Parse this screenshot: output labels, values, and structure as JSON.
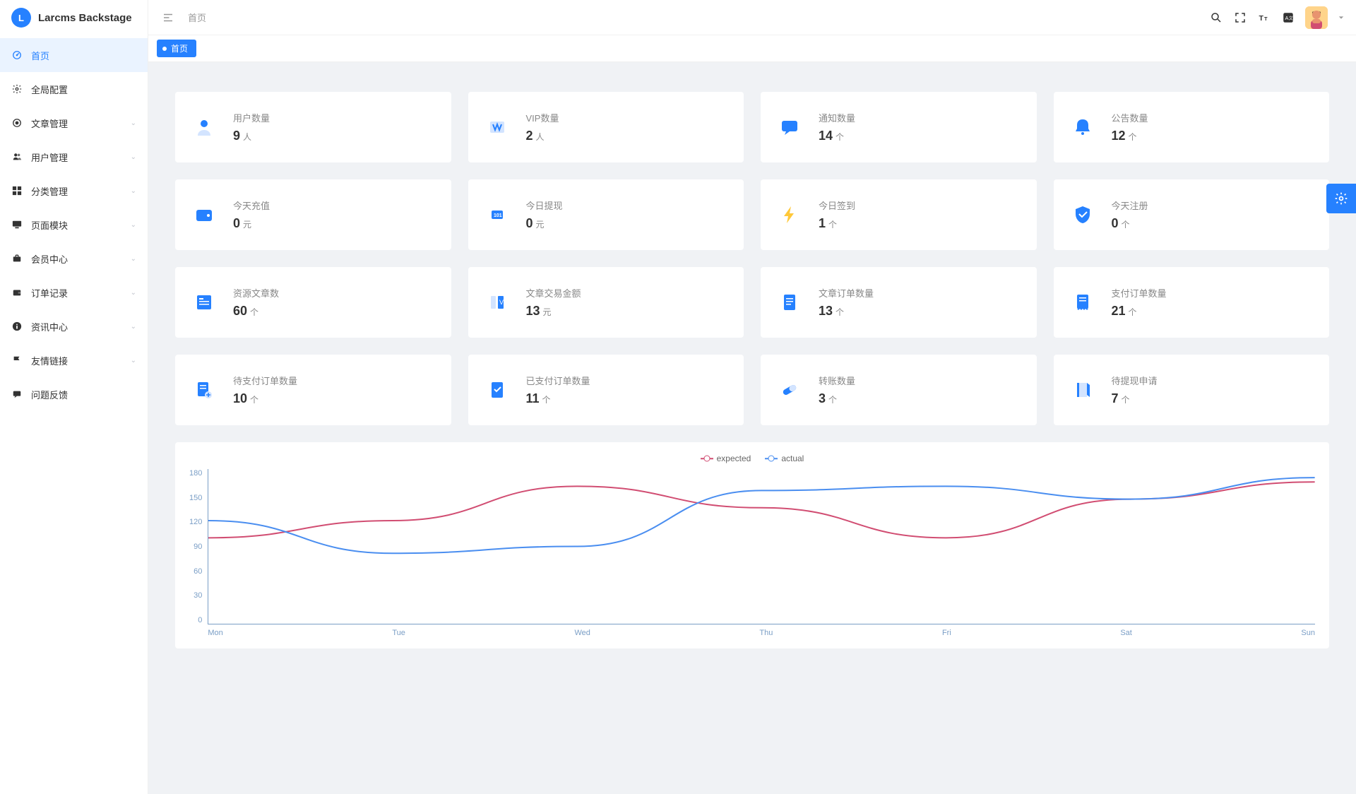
{
  "brand": {
    "name": "Larcms Backstage",
    "logo_letter": "L"
  },
  "colors": {
    "primary": "#2681ff",
    "bg": "#f0f2f5",
    "icon_light": "#d3e4ff",
    "expected": "#d14d72",
    "actual": "#4a8ef0",
    "axis": "#7a9ec6"
  },
  "sidebar": {
    "items": [
      {
        "label": "首页",
        "icon": "dashboard",
        "active": true,
        "expandable": false
      },
      {
        "label": "全局配置",
        "icon": "gear",
        "active": false,
        "expandable": false
      },
      {
        "label": "文章管理",
        "icon": "target",
        "active": false,
        "expandable": true
      },
      {
        "label": "用户管理",
        "icon": "users",
        "active": false,
        "expandable": true
      },
      {
        "label": "分类管理",
        "icon": "grid",
        "active": false,
        "expandable": true
      },
      {
        "label": "页面模块",
        "icon": "monitor",
        "active": false,
        "expandable": true
      },
      {
        "label": "会员中心",
        "icon": "briefcase",
        "active": false,
        "expandable": true
      },
      {
        "label": "订单记录",
        "icon": "wallet",
        "active": false,
        "expandable": true
      },
      {
        "label": "资讯中心",
        "icon": "info",
        "active": false,
        "expandable": true
      },
      {
        "label": "友情链接",
        "icon": "flag",
        "active": false,
        "expandable": true
      },
      {
        "label": "问题反馈",
        "icon": "message",
        "active": false,
        "expandable": false
      }
    ]
  },
  "topbar": {
    "breadcrumb": "首页"
  },
  "tabs": [
    {
      "label": "首页",
      "active": true
    }
  ],
  "stats": [
    {
      "title": "用户数量",
      "value": "9",
      "unit": "人",
      "icon": "user"
    },
    {
      "title": "VIP数量",
      "value": "2",
      "unit": "人",
      "icon": "vip"
    },
    {
      "title": "通知数量",
      "value": "14",
      "unit": "个",
      "icon": "chat"
    },
    {
      "title": "公告数量",
      "value": "12",
      "unit": "个",
      "icon": "bell"
    },
    {
      "title": "今天充值",
      "value": "0",
      "unit": "元",
      "icon": "wallet2"
    },
    {
      "title": "今日提现",
      "value": "0",
      "unit": "元",
      "icon": "atm"
    },
    {
      "title": "今日签到",
      "value": "1",
      "unit": "个",
      "icon": "bolt"
    },
    {
      "title": "今天注册",
      "value": "0",
      "unit": "个",
      "icon": "shield"
    },
    {
      "title": "资源文章数",
      "value": "60",
      "unit": "个",
      "icon": "article"
    },
    {
      "title": "文章交易金额",
      "value": "13",
      "unit": "元",
      "icon": "columns"
    },
    {
      "title": "文章订单数量",
      "value": "13",
      "unit": "个",
      "icon": "doc"
    },
    {
      "title": "支付订单数量",
      "value": "21",
      "unit": "个",
      "icon": "receipt"
    },
    {
      "title": "待支付订单数量",
      "value": "10",
      "unit": "个",
      "icon": "docplus"
    },
    {
      "title": "已支付订单数量",
      "value": "11",
      "unit": "个",
      "icon": "doccheck"
    },
    {
      "title": "转账数量",
      "value": "3",
      "unit": "个",
      "icon": "pill"
    },
    {
      "title": "待提现申请",
      "value": "7",
      "unit": "个",
      "icon": "book"
    }
  ],
  "chart": {
    "type": "line",
    "legend": [
      {
        "key": "expected",
        "label": "expected",
        "color": "#d14d72"
      },
      {
        "key": "actual",
        "label": "actual",
        "color": "#4a8ef0"
      }
    ],
    "x_labels": [
      "Mon",
      "Tue",
      "Wed",
      "Thu",
      "Fri",
      "Sat",
      "Sun"
    ],
    "y_ticks": [
      180,
      150,
      120,
      90,
      60,
      30,
      0
    ],
    "ylim": [
      0,
      180
    ],
    "series": {
      "expected": [
        100,
        120,
        160,
        135,
        100,
        145,
        165
      ],
      "actual": [
        120,
        82,
        90,
        155,
        160,
        145,
        170
      ]
    },
    "line_width": 2,
    "background": "#ffffff",
    "axis_color": "#7a9ec6"
  }
}
